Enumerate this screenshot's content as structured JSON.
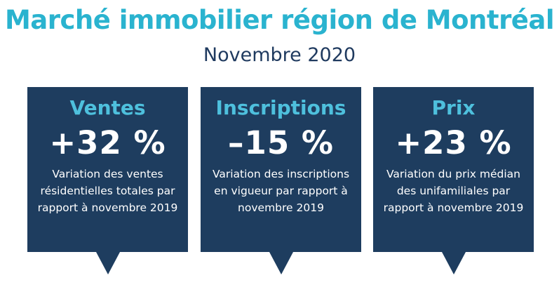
{
  "header": {
    "title": "Marché immobilier région de Montréal",
    "subtitle": "Novembre 2020"
  },
  "colors": {
    "title": "#2ab3cf",
    "card_background": "#1e3d5f",
    "card_heading": "#4ec0dd",
    "card_text": "#ffffff"
  },
  "cards": [
    {
      "title": "Ventes",
      "value": "+32 %",
      "description": "Variation des ventes résidentielles totales par rapport à novembre 2019"
    },
    {
      "title": "Inscriptions",
      "value": "–15 %",
      "description": "Variation des inscriptions en vigueur par rapport à novembre 2019"
    },
    {
      "title": "Prix",
      "value": "+23 %",
      "description": "Variation du prix médian des unifamiliales par rapport à novembre 2019"
    }
  ]
}
